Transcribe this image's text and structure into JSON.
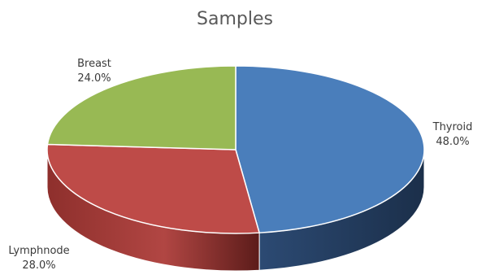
{
  "chart_data": {
    "type": "pie",
    "title": "Samples",
    "style": "3d",
    "slices": [
      {
        "label": "Thyroid",
        "value": 48.0,
        "display": "48.0%",
        "color": "#4a7ebb"
      },
      {
        "label": "Lymphnode",
        "value": 28.0,
        "display": "28.0%",
        "color": "#be4b48"
      },
      {
        "label": "Breast",
        "value": 24.0,
        "display": "24.0%",
        "color": "#98b954"
      }
    ]
  }
}
